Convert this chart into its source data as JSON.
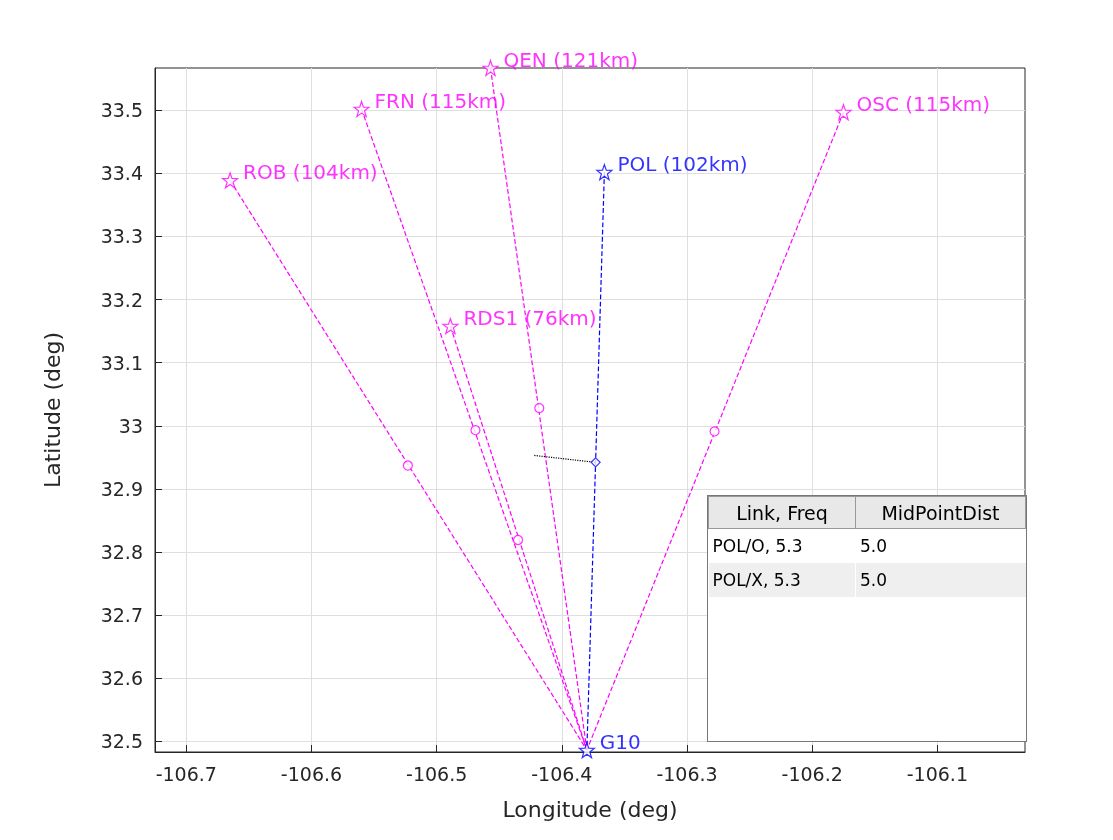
{
  "chart_data": {
    "type": "line",
    "xlabel": "Longitude (deg)",
    "ylabel": "Latitude (deg)",
    "xlim": [
      -106.725,
      -106.03
    ],
    "ylim": [
      32.483,
      33.567
    ],
    "xticks": [
      -106.7,
      -106.6,
      -106.5,
      -106.4,
      -106.3,
      -106.2,
      -106.1
    ],
    "yticks": [
      32.5,
      32.6,
      32.7,
      32.8,
      32.9,
      33,
      33.1,
      33.2,
      33.3,
      33.4,
      33.5
    ],
    "grid": true,
    "series": [
      {
        "line_style": "dashed",
        "marker": "none",
        "color": "#ff00ff",
        "x": [
          -106.457,
          -106.38
        ],
        "values": [
          33.567,
          32.486
        ]
      },
      {
        "line_style": "dashed",
        "marker": "none",
        "color": "#ff00ff",
        "x": [
          -106.56,
          -106.38
        ],
        "values": [
          33.502,
          32.486
        ]
      },
      {
        "line_style": "dashed",
        "marker": "none",
        "color": "#ff00ff",
        "x": [
          -106.665,
          -106.38
        ],
        "values": [
          33.389,
          32.486
        ]
      },
      {
        "line_style": "dashed",
        "marker": "none",
        "color": "#ff00ff",
        "x": [
          -106.175,
          -106.38
        ],
        "values": [
          33.497,
          32.486
        ]
      },
      {
        "line_style": "dashed",
        "marker": "none",
        "color": "#ff00ff",
        "x": [
          -106.489,
          -106.38
        ],
        "values": [
          33.158,
          32.486
        ]
      },
      {
        "line_style": "dashed",
        "marker": "none",
        "color": "#0000ff",
        "x": [
          -106.366,
          -106.38
        ],
        "values": [
          33.402,
          32.486
        ]
      },
      {
        "line_style": "dotted",
        "marker": "none",
        "color": "#000000",
        "x": [
          -106.422,
          -106.373
        ],
        "values": [
          32.953,
          32.942
        ]
      },
      {
        "type": "scatter",
        "marker": "circle",
        "color": "#ff00ff",
        "x": [
          -106.418,
          -106.469,
          -106.523,
          -106.278,
          -106.435
        ],
        "values": [
          33.028,
          32.993,
          32.937,
          32.991,
          32.819
        ]
      },
      {
        "type": "scatter",
        "marker": "diamond",
        "color": "#0000ff",
        "x": [
          -106.373
        ],
        "values": [
          32.942
        ]
      },
      {
        "type": "scatter",
        "marker": "star",
        "colors": [
          "#ff00ff",
          "#ff00ff",
          "#ff00ff",
          "#ff00ff",
          "#ff00ff",
          "#0000ff",
          "#0000ff"
        ],
        "x": [
          -106.457,
          -106.56,
          -106.665,
          -106.175,
          -106.489,
          -106.366,
          -106.38
        ],
        "values": [
          33.567,
          33.502,
          33.389,
          33.497,
          33.158,
          33.402,
          32.486
        ]
      }
    ],
    "annotations": [
      {
        "text": "QEN (121km)",
        "x": -106.457,
        "y": 33.567
      },
      {
        "text": "FRN (115km)",
        "x": -106.56,
        "y": 33.502
      },
      {
        "text": "ROB (104km)",
        "x": -106.665,
        "y": 33.389
      },
      {
        "text": "OSC (115km)",
        "x": -106.175,
        "y": 33.497
      },
      {
        "text": "RDS1 (76km)",
        "x": -106.489,
        "y": 33.158
      },
      {
        "text": "POL (102km)",
        "x": -106.366,
        "y": 33.402
      },
      {
        "text": "G10",
        "x": -106.38,
        "y": 32.486
      },
      "Link, Freq",
      "MidPointDist",
      "POL/O, 5.3",
      "5.0",
      "POL/X, 5.3",
      "5.0"
    ]
  }
}
